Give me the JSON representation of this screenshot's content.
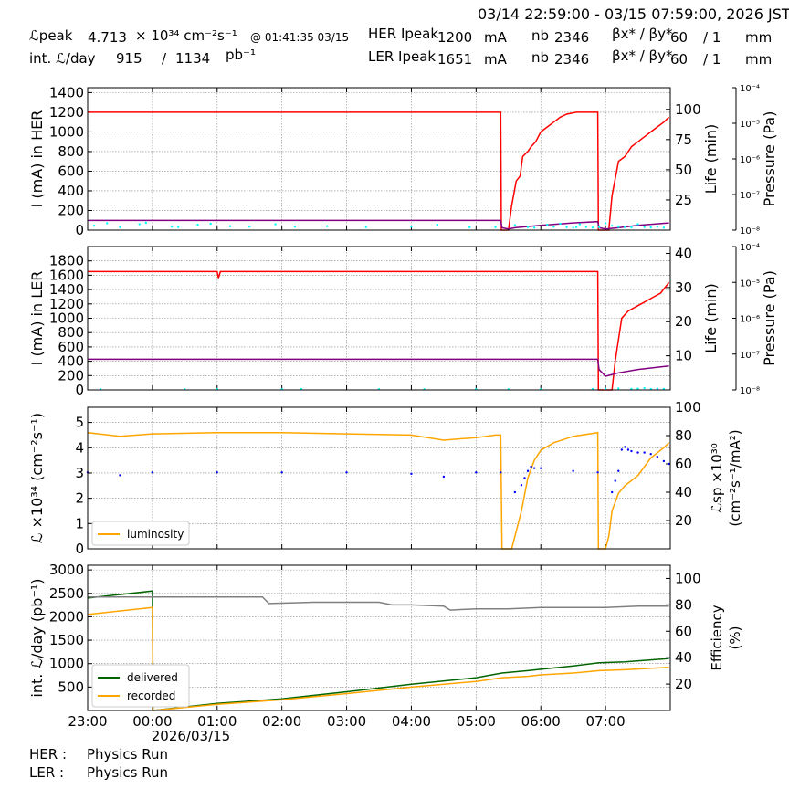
{
  "header": {
    "time_range": "03/14 22:59:00 - 03/15 07:59:00, 2026 JST",
    "lpeak_label": "ℒpeak",
    "lpeak_value": "4.713",
    "lpeak_unit": "× 10³⁴ cm⁻²s⁻¹",
    "lpeak_time": "@ 01:41:35 03/15",
    "intl_label": "int. ℒ/day",
    "intl_value": "915",
    "intl_sep": "/",
    "intl_total": "1134",
    "intl_unit": "pb⁻¹",
    "her_label": "HER Ipeak",
    "her_value": "1200",
    "her_unit": "mA",
    "ler_label": "LER Ipeak",
    "ler_value": "1651",
    "ler_unit": "mA",
    "nb_label": "nb",
    "her_nb": "2346",
    "ler_nb": "2346",
    "beta_label": "βx* / βy*",
    "her_beta_x": "60",
    "her_beta_y": "/ 1",
    "ler_beta_x": "60",
    "ler_beta_y": "/ 1",
    "beta_unit": "mm"
  },
  "footer": {
    "her_label": "HER :",
    "her_status": "Physics Run",
    "ler_label": "LER :",
    "ler_status": "Physics Run"
  },
  "chart_data": [
    {
      "type": "line",
      "ylabel": "I (mA) in HER",
      "y2label": "Life (min)",
      "y3label": "Pressure (Pa)",
      "ylim": [
        0,
        1450
      ],
      "yticks": [
        0,
        200,
        400,
        600,
        800,
        1000,
        1200,
        1400
      ],
      "y2lim": [
        0,
        118
      ],
      "y2ticks": [
        25,
        50,
        75,
        100
      ],
      "y3ticks": [
        "10⁻⁸",
        "10⁻⁷",
        "10⁻⁶",
        "10⁻⁵",
        "10⁻⁴"
      ],
      "series": [
        {
          "role": "current",
          "color": "#ff0000",
          "x": [
            23.0,
            5.38,
            5.39,
            5.5,
            5.55,
            5.62,
            5.68,
            5.72,
            5.8,
            5.85,
            5.92,
            6.0,
            6.1,
            6.2,
            6.3,
            6.4,
            6.55,
            6.88,
            6.89,
            7.05,
            7.1,
            7.2,
            7.3,
            7.4,
            7.5,
            7.6,
            7.7,
            7.8,
            7.9,
            7.98
          ],
          "y": [
            1200,
            1200,
            0,
            0,
            250,
            500,
            550,
            750,
            800,
            850,
            900,
            1000,
            1050,
            1100,
            1150,
            1180,
            1200,
            1200,
            0,
            0,
            350,
            700,
            750,
            850,
            900,
            950,
            1000,
            1050,
            1100,
            1150
          ]
        },
        {
          "role": "life",
          "color": "#800080",
          "axis": "y2",
          "x": [
            23.0,
            5.38,
            5.4,
            5.5,
            5.6,
            6.0,
            6.5,
            6.88,
            6.9,
            7.0,
            7.2,
            7.5,
            7.98
          ],
          "y": [
            8,
            8,
            2,
            1,
            2,
            4,
            6,
            7,
            2,
            1,
            2,
            4,
            6
          ]
        },
        {
          "role": "pressure",
          "color": "#00ffff",
          "style": "dots",
          "x": [
            23.1,
            23.3,
            23.5,
            23.8,
            23.9,
            24.3,
            24.4,
            24.7,
            24.9,
            25.2,
            25.5,
            25.9,
            26.2,
            26.7,
            27.3,
            28.0,
            28.4,
            28.9,
            29.3,
            29.6,
            29.8,
            29.9,
            30.1,
            30.2,
            30.3,
            30.4,
            30.5,
            30.55,
            30.6,
            30.7,
            30.8,
            30.9,
            31.0,
            31.1,
            31.2,
            31.3,
            31.4,
            31.5,
            31.6,
            31.7,
            31.8,
            31.9
          ],
          "y": [
            45,
            70,
            30,
            60,
            75,
            35,
            30,
            55,
            65,
            40,
            35,
            60,
            35,
            40,
            30,
            35,
            55,
            28,
            30,
            50,
            30,
            25,
            55,
            35,
            65,
            30,
            25,
            30,
            60,
            32,
            25,
            30,
            70,
            45,
            32,
            30,
            28,
            60,
            32,
            28,
            35,
            25
          ]
        }
      ]
    },
    {
      "type": "line",
      "ylabel": "I (mA) in LER",
      "y2label": "Life (min)",
      "y3label": "Pressure (Pa)",
      "ylim": [
        0,
        2000
      ],
      "yticks": [
        0,
        200,
        400,
        600,
        800,
        1000,
        1200,
        1400,
        1600,
        1800
      ],
      "y2lim": [
        0,
        42
      ],
      "y2ticks": [
        10,
        20,
        30,
        40
      ],
      "y3ticks": [
        "10⁻⁸",
        "10⁻⁷",
        "10⁻⁶",
        "10⁻⁵",
        "10⁻⁴"
      ],
      "series": [
        {
          "role": "current",
          "color": "#ff0000",
          "x": [
            23.0,
            1.0,
            1.02,
            1.05,
            6.88,
            6.89,
            7.1,
            7.15,
            7.25,
            7.35,
            7.45,
            7.55,
            7.65,
            7.75,
            7.85,
            7.98
          ],
          "y": [
            1651,
            1651,
            1560,
            1651,
            1651,
            0,
            0,
            400,
            1000,
            1100,
            1150,
            1200,
            1250,
            1300,
            1350,
            1500
          ]
        },
        {
          "role": "life",
          "color": "#800080",
          "axis": "y2",
          "x": [
            23.0,
            6.88,
            6.9,
            7.0,
            7.2,
            7.5,
            7.98
          ],
          "y": [
            9,
            9,
            6,
            4,
            5,
            6,
            7
          ]
        },
        {
          "role": "pressure",
          "color": "#00ffff",
          "style": "dots",
          "x": [
            23.2,
            24.5,
            25.0,
            26.0,
            26.3,
            27.5,
            28.2,
            29.0,
            29.5,
            30.0,
            30.8,
            31.0,
            31.2,
            31.4,
            31.5,
            31.6,
            31.7,
            31.8,
            31.9
          ],
          "y": [
            9,
            8,
            10,
            9,
            11,
            10,
            9,
            10,
            9,
            9,
            11,
            15,
            20,
            13,
            17,
            25,
            12,
            18,
            14
          ]
        }
      ]
    },
    {
      "type": "line",
      "ylabel": "ℒ ×10³⁴ (cm⁻²s⁻¹)",
      "y2label": "ℒsp ×10³⁰ (cm⁻²s⁻¹/mA²)",
      "ylim": [
        0,
        5.6
      ],
      "yticks": [
        0,
        1,
        2,
        3,
        4,
        5
      ],
      "y2lim": [
        0,
        100
      ],
      "y2ticks": [
        20,
        40,
        60,
        80,
        100
      ],
      "legend": [
        {
          "label": "luminosity",
          "color": "#ffa500"
        }
      ],
      "legend_position": "lower-left",
      "series": [
        {
          "role": "luminosity",
          "color": "#ffa500",
          "x": [
            23.0,
            23.5,
            24.0,
            25.0,
            26.0,
            27.0,
            28.0,
            28.5,
            29.0,
            29.3,
            29.38,
            29.4,
            29.55,
            29.6,
            29.7,
            29.8,
            29.9,
            30.0,
            30.2,
            30.5,
            30.88,
            30.89,
            31.0,
            31.05,
            31.1,
            31.2,
            31.3,
            31.5,
            31.7,
            31.9,
            31.98
          ],
          "y": [
            4.6,
            4.45,
            4.55,
            4.6,
            4.6,
            4.55,
            4.5,
            4.3,
            4.4,
            4.5,
            4.5,
            0,
            0,
            0.5,
            1.5,
            2.8,
            3.5,
            3.9,
            4.2,
            4.45,
            4.6,
            0,
            0,
            0.5,
            1.5,
            2.2,
            2.5,
            2.9,
            3.6,
            4.0,
            4.2
          ]
        },
        {
          "role": "specific",
          "color": "#0000ff",
          "axis": "y2",
          "style": "dots",
          "x": [
            23.0,
            23.5,
            24.0,
            25.0,
            26.0,
            27.0,
            28.0,
            28.5,
            29.0,
            29.38,
            29.6,
            29.7,
            29.75,
            29.8,
            29.85,
            29.9,
            30.0,
            30.5,
            30.88,
            31.1,
            31.15,
            31.2,
            31.25,
            31.3,
            31.35,
            31.4,
            31.5,
            31.6,
            31.7,
            31.8,
            31.9,
            31.98
          ],
          "y": [
            54,
            52,
            54,
            54,
            54,
            54,
            53,
            51,
            54,
            54,
            40,
            45,
            50,
            55,
            58,
            57,
            57,
            55,
            54,
            40,
            48,
            55,
            70,
            72,
            70,
            69,
            68,
            68,
            67,
            65,
            62,
            60
          ]
        }
      ]
    },
    {
      "type": "line",
      "ylabel": "int. ℒ/day (pb⁻¹)",
      "y2label": "Efficiency (%)",
      "xlabel": "2026/03/15",
      "ylim": [
        0,
        3100
      ],
      "yticks": [
        500,
        1000,
        1500,
        2000,
        2500,
        3000
      ],
      "y2lim": [
        0,
        110
      ],
      "y2ticks": [
        20,
        40,
        60,
        80,
        100
      ],
      "xticks": [
        "23:00",
        "00:00",
        "01:00",
        "02:00",
        "03:00",
        "04:00",
        "05:00",
        "06:00",
        "07:00"
      ],
      "xlim": [
        23.0,
        32.0
      ],
      "legend": [
        {
          "label": "delivered",
          "color": "#006400"
        },
        {
          "label": "recorded",
          "color": "#ffa500"
        }
      ],
      "legend_position": "lower-left",
      "series": [
        {
          "role": "delivered",
          "color": "#006400",
          "x": [
            23.0,
            24.0,
            24.01,
            25.0,
            26.0,
            27.0,
            28.0,
            29.0,
            29.4,
            29.8,
            30.0,
            30.5,
            30.9,
            31.3,
            31.98
          ],
          "y": [
            2400,
            2550,
            0,
            150,
            250,
            400,
            560,
            700,
            800,
            850,
            880,
            950,
            1020,
            1040,
            1110
          ]
        },
        {
          "role": "recorded",
          "color": "#ffa500",
          "x": [
            23.0,
            24.0,
            24.01,
            25.0,
            26.0,
            27.0,
            28.0,
            29.0,
            29.4,
            29.8,
            30.0,
            30.5,
            30.9,
            31.3,
            31.98
          ],
          "y": [
            2050,
            2200,
            0,
            130,
            230,
            360,
            500,
            620,
            700,
            730,
            760,
            800,
            850,
            870,
            920
          ]
        },
        {
          "role": "efficiency",
          "color": "#808080",
          "axis": "y2",
          "x": [
            23.0,
            24.0,
            25.0,
            25.7,
            25.8,
            26.5,
            26.9,
            27.0,
            27.5,
            27.7,
            28.0,
            28.5,
            28.6,
            29.0,
            29.5,
            30.0,
            30.5,
            31.0,
            31.5,
            31.98
          ],
          "y": [
            86,
            86,
            86,
            86,
            81,
            82,
            82,
            82,
            82,
            80,
            80,
            79,
            76,
            77,
            77,
            78,
            78,
            78,
            79,
            79
          ]
        }
      ]
    }
  ]
}
